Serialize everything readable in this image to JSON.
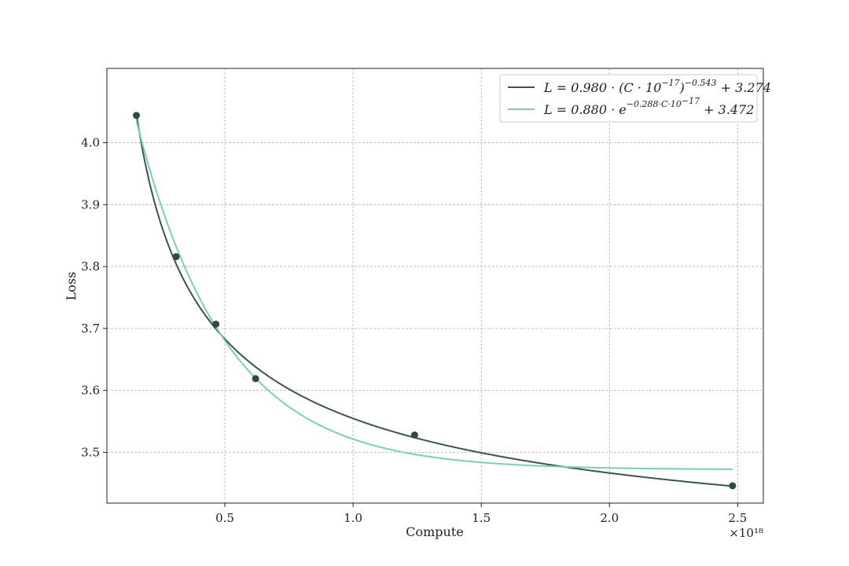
{
  "chart_data": {
    "type": "line",
    "title": "",
    "xlabel": "Compute",
    "ylabel": "Loss",
    "x_multiplier": "×10¹⁸",
    "xlim": [
      0.04,
      2.6
    ],
    "ylim": [
      3.418,
      4.12
    ],
    "x_ticks": [
      0.5,
      1.0,
      1.5,
      2.0,
      2.5
    ],
    "x_tick_labels": [
      "0.5",
      "1.0",
      "1.5",
      "2.0",
      "2.5"
    ],
    "y_ticks": [
      3.5,
      3.6,
      3.7,
      3.8,
      3.9,
      4.0
    ],
    "y_tick_labels": [
      "3.5",
      "3.6",
      "3.7",
      "3.8",
      "3.9",
      "4.0"
    ],
    "grid": true,
    "legend_position": "top-right",
    "points": {
      "x": [
        0.155,
        0.31,
        0.465,
        0.62,
        1.24,
        2.48
      ],
      "y": [
        4.044,
        3.816,
        3.707,
        3.619,
        3.528,
        3.446
      ]
    },
    "series": [
      {
        "name": "L = 0.980 · (C · 10^−17)^−0.543 + 3.274",
        "legend_parts": [
          "L = 0.980 · (C · 10",
          "−17",
          ")",
          "−0.543",
          " + 3.274"
        ],
        "model": "power",
        "params": {
          "a": 0.98,
          "b": -0.543,
          "c": 3.274
        },
        "color": "#3a5550"
      },
      {
        "name": "L = 0.880 · e^−0.288·C·10^−17 + 3.472",
        "legend_parts": [
          "L = 0.880 · e",
          "−0.288·C·10",
          "−17",
          " + 3.472"
        ],
        "model": "exponential",
        "params": {
          "a": 0.88,
          "b": -0.288,
          "c": 3.472
        },
        "color": "#7ecbbf"
      }
    ],
    "point_color": "#2e4a47"
  }
}
